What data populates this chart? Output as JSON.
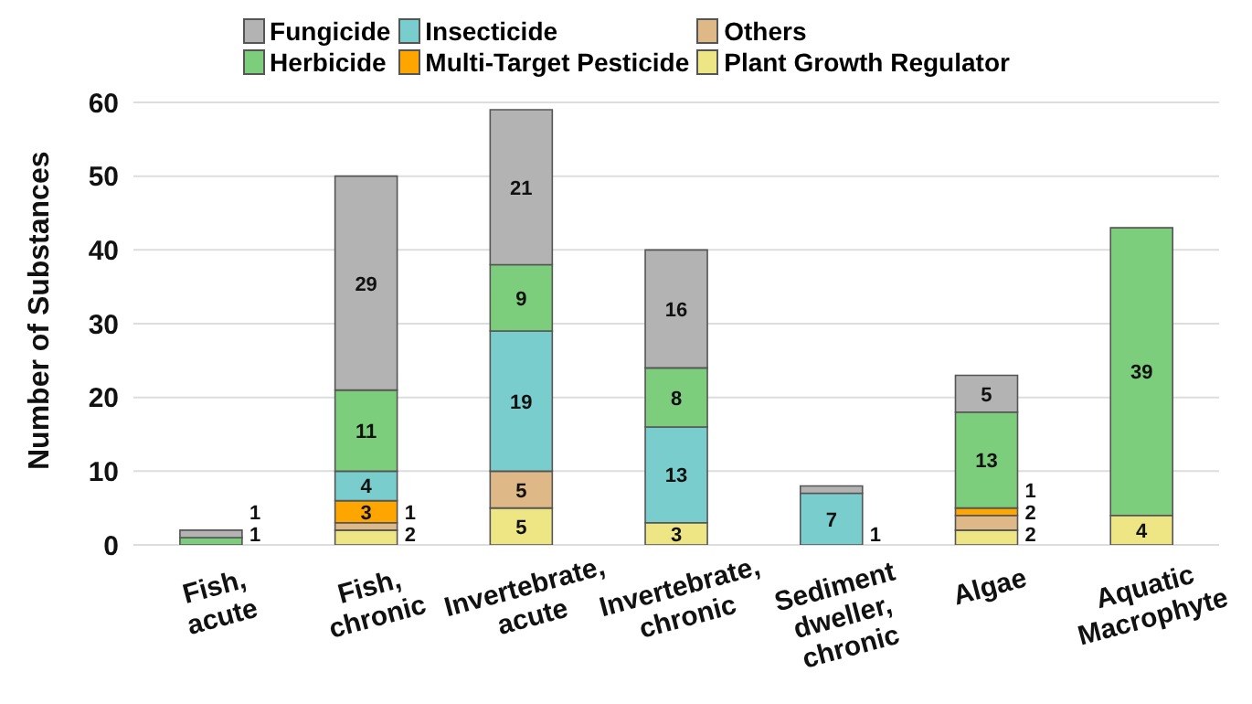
{
  "chart_data": {
    "type": "bar",
    "stacked": true,
    "ylabel": "Number of Substances",
    "categories": [
      "Fish, acute",
      "Fish, chronic",
      "Invertebrate, acute",
      "Invertebrate, chronic",
      "Sediment dweller, chronic",
      "Algae",
      "Aquatic Macrophyte"
    ],
    "series": [
      {
        "name": "Plant Growth Regulator",
        "color": "#eee685",
        "values": [
          null,
          2,
          5,
          3,
          null,
          2,
          4
        ]
      },
      {
        "name": "Others",
        "color": "#deb887",
        "values": [
          null,
          1,
          5,
          null,
          null,
          2,
          null
        ]
      },
      {
        "name": "Multi-Target Pesticide",
        "color": "#ffa500",
        "values": [
          null,
          3,
          null,
          null,
          null,
          1,
          null
        ]
      },
      {
        "name": "Insecticide",
        "color": "#79cdcd",
        "values": [
          null,
          4,
          19,
          13,
          7,
          null,
          null
        ]
      },
      {
        "name": "Herbicide",
        "color": "#7ccd7c",
        "values": [
          1,
          11,
          9,
          8,
          null,
          13,
          39
        ]
      },
      {
        "name": "Fungicide",
        "color": "#b3b3b3",
        "values": [
          1,
          29,
          21,
          16,
          1,
          5,
          null
        ]
      }
    ],
    "ylim": [
      0,
      60
    ],
    "yticks": [
      0,
      10,
      20,
      30,
      40,
      50,
      60
    ],
    "grid": "y",
    "legend": "top",
    "data_labels": true
  }
}
